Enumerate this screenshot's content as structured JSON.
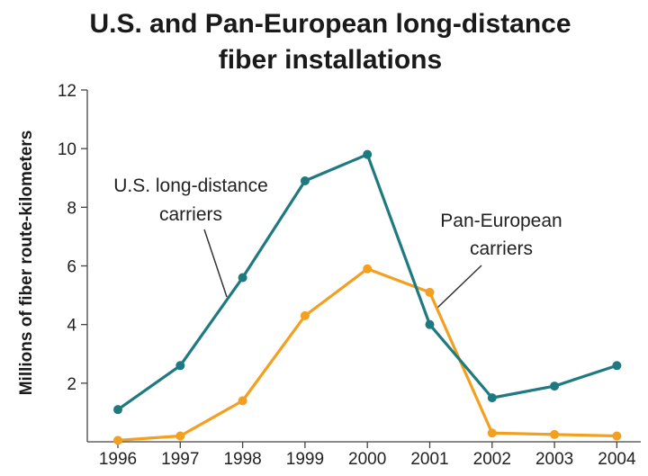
{
  "chart_data": {
    "type": "line",
    "title_lines": [
      "U.S. and Pan-European long-distance",
      "fiber installations"
    ],
    "ylabel": "Millions of fiber route-kilometers",
    "xlabel": "",
    "categories": [
      "1996",
      "1997",
      "1998",
      "1999",
      "2000",
      "2001",
      "2002",
      "2003",
      "2004"
    ],
    "yticks": [
      "2",
      "4",
      "6",
      "8",
      "10",
      "12"
    ],
    "ylim": [
      0,
      12
    ],
    "grid": false,
    "series": [
      {
        "name_lines": [
          "U.S. long-distance",
          "carriers"
        ],
        "color": "#1e7a80",
        "values": [
          1.1,
          2.6,
          5.6,
          8.9,
          9.8,
          4.0,
          1.5,
          1.9,
          2.6
        ]
      },
      {
        "name_lines": [
          "Pan-European",
          "carriers"
        ],
        "color": "#f3a020",
        "values": [
          0.05,
          0.2,
          1.4,
          4.3,
          5.9,
          5.1,
          0.3,
          0.25,
          0.2
        ]
      }
    ]
  }
}
